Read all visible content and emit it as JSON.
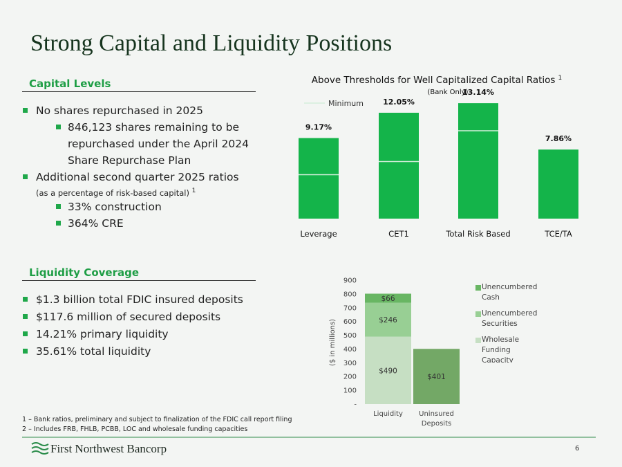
{
  "title": "Strong Capital and Liquidity Positions",
  "capital_levels": {
    "heading": "Capital Levels",
    "bullets": [
      {
        "text": "No shares repurchased in 2025",
        "children": [
          {
            "text": "846,123 shares remaining to be repurchased under the April 2024 Share Repurchase Plan"
          }
        ]
      },
      {
        "text": "Additional second quarter 2025 ratios",
        "note": "(as a percentage of risk-based capital)",
        "sup": "1",
        "children": [
          {
            "text": "33% construction"
          },
          {
            "text": "364% CRE"
          }
        ]
      }
    ]
  },
  "liquidity_coverage": {
    "heading": "Liquidity Coverage",
    "bullets": [
      {
        "text": "$1.3 billion total FDIC insured deposits"
      },
      {
        "text": "$117.6 million of secured deposits"
      },
      {
        "text": "14.21% primary liquidity"
      },
      {
        "text": "35.61% total liquidity"
      }
    ]
  },
  "footnotes": [
    "1 – Bank ratios, preliminary and subject to finalization of the FDIC call report filing",
    "2 – Includes FRB, FHLB, PCBB, LOC and wholesale funding capacities"
  ],
  "footer": {
    "company": "First Northwest Bancorp",
    "page": "6"
  },
  "chart_data": [
    {
      "type": "bar",
      "title": "Above Thresholds for Well Capitalized Capital Ratios",
      "title_sup": "1",
      "subtitle": "(Bank Only)",
      "categories": [
        "Leverage",
        "CET1",
        "Total Risk Based",
        "TCE/TA"
      ],
      "values": [
        9.17,
        12.05,
        13.14,
        7.86
      ],
      "value_labels": [
        "9.17%",
        "12.05%",
        "13.14%",
        "7.86%"
      ],
      "color": "#14b44a",
      "minimum": {
        "name": "Minimum",
        "values": [
          5,
          6.5,
          10,
          null
        ],
        "color": "#d4eedb"
      }
    },
    {
      "type": "stacked_bar",
      "y_label": "($ in millions)",
      "categories": [
        "Liquidity",
        "Uninsured Deposits"
      ],
      "series": [
        {
          "name": "Wholesale Funding Capacity",
          "color": "#c6dfc3",
          "values": [
            490,
            null
          ],
          "value_labels": [
            "$490",
            null
          ]
        },
        {
          "name": "Unencumbered Securities",
          "color": "#98cf94",
          "values": [
            246,
            null
          ],
          "value_labels": [
            "$246",
            null
          ]
        },
        {
          "name": "Unencumbered Cash",
          "color": "#68b663",
          "values": [
            66,
            null
          ],
          "value_labels": [
            "$66",
            null
          ]
        },
        {
          "color": "#73a866",
          "values": [
            null,
            401
          ],
          "value_labels": [
            null,
            "$401"
          ]
        }
      ],
      "ylim": [
        0,
        900
      ],
      "yticks": [
        {
          "value": 0,
          "label": "-"
        },
        100,
        200,
        300,
        400,
        500,
        600,
        700,
        800,
        900
      ]
    }
  ]
}
